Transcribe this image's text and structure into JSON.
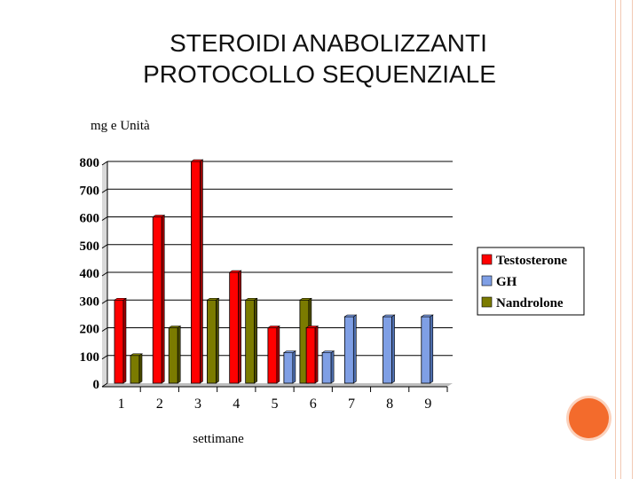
{
  "slide": {
    "title_line1": "STEROIDI ANABOLIZZANTI",
    "title_line2": "PROTOCOLLO SEQUENZIALE"
  },
  "colors": {
    "testosterone": "#ff0000",
    "gh": "#7f9fe5",
    "nandrolone": "#7b7b00",
    "accent": "#f36b2c"
  },
  "chart_data": {
    "type": "bar",
    "title": "",
    "ylabel": "mg e Unità",
    "xlabel": "settimane",
    "categories": [
      "1",
      "2",
      "3",
      "4",
      "5",
      "6",
      "7",
      "8",
      "9"
    ],
    "yticks": [
      "0",
      "100",
      "200",
      "300",
      "400",
      "500",
      "600",
      "700",
      "800"
    ],
    "ylim": [
      0,
      800
    ],
    "grid": true,
    "legend_position": "right",
    "series": [
      {
        "name": "Testosterone",
        "values": [
          300,
          600,
          800,
          400,
          200,
          200,
          null,
          null,
          null
        ]
      },
      {
        "name": "GH",
        "values": [
          null,
          null,
          null,
          null,
          110,
          110,
          240,
          240,
          240
        ]
      },
      {
        "name": "Nandrolone",
        "values": [
          100,
          200,
          300,
          300,
          300,
          null,
          null,
          null,
          null
        ]
      }
    ]
  }
}
